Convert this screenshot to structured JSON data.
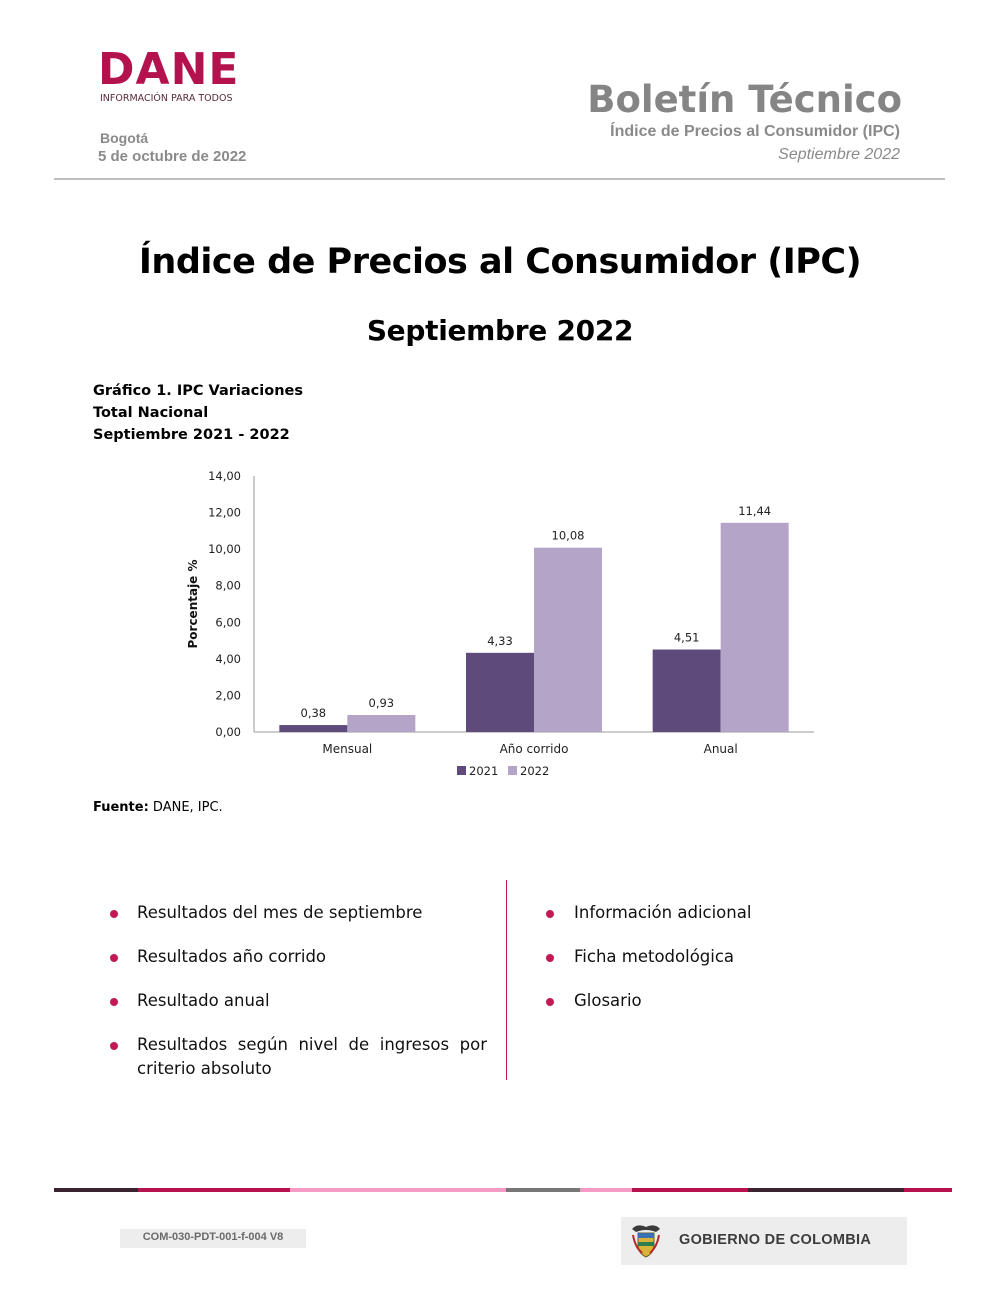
{
  "header": {
    "logo_word": "DANE",
    "logo_tagline": "INFORMACIÓN PARA TODOS",
    "city": "Bogotá",
    "date": "5 de octubre de 2022",
    "bulletin_title": "Boletín Técnico",
    "bulletin_subtitle": "Índice de Precios al Consumidor (IPC)",
    "bulletin_month": "Septiembre 2022"
  },
  "main": {
    "title": "Índice de Precios al Consumidor (IPC)",
    "subtitle": "Septiembre 2022"
  },
  "chart_caption": {
    "line1": "Gráfico 1. IPC Variaciones",
    "line2": "Total Nacional",
    "line3": "Septiembre 2021 - 2022"
  },
  "chart_data": {
    "type": "bar",
    "title": "",
    "ylabel": "Porcentaje %",
    "xlabel": "",
    "categories": [
      "Mensual",
      "Año corrido",
      "Anual"
    ],
    "series": [
      {
        "name": "2021",
        "values": [
          0.38,
          4.33,
          4.51
        ],
        "labels": [
          "0,38",
          "4,33",
          "4,51"
        ],
        "color": "#5f4b7b"
      },
      {
        "name": "2022",
        "values": [
          0.93,
          10.08,
          11.44
        ],
        "labels": [
          "0,93",
          "10,08",
          "11,44"
        ],
        "color": "#b4a5c8"
      }
    ],
    "ylim": [
      0,
      14
    ],
    "yticks": [
      "0,00",
      "2,00",
      "4,00",
      "6,00",
      "8,00",
      "10,00",
      "12,00",
      "14,00"
    ],
    "grid": false,
    "legend_position": "bottom"
  },
  "source": {
    "label": "Fuente:",
    "text": " DANE, IPC."
  },
  "contents": {
    "left": [
      "Resultados del mes de septiembre",
      "Resultados año corrido",
      "Resultado anual",
      "Resultados según nivel de ingresos por criterio absoluto"
    ],
    "right": [
      "Información adicional",
      "Ficha metodológica",
      "Glosario"
    ],
    "bullet_color": "#c21a56"
  },
  "footer": {
    "code": "COM-030-PDT-001-f-004 V8",
    "gov_label": "GOBIERNO DE COLOMBIA",
    "seal_icon": "coat-of-arms-icon"
  },
  "colors": {
    "brand": "#b4124f",
    "header_gray": "#858585"
  }
}
